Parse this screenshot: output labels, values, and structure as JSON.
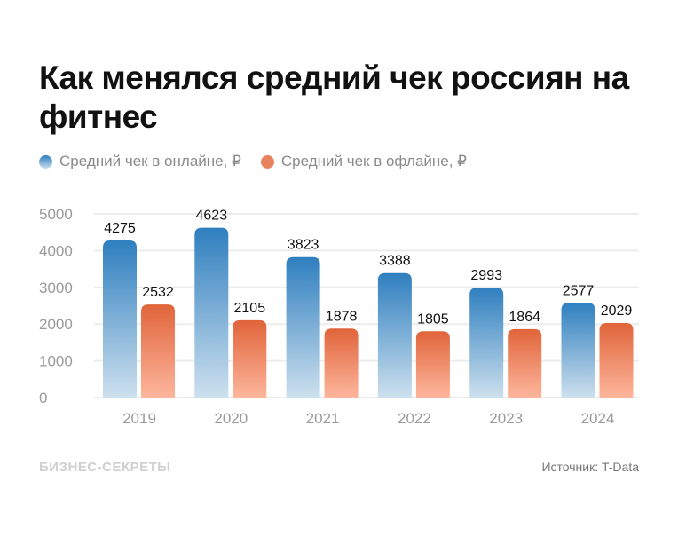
{
  "title": "Как менялся средний чек россиян на фитнес",
  "legend": [
    {
      "label": "Средний чек в онлайне, ₽",
      "color": "#3a85c2"
    },
    {
      "label": "Средний чек в офлайне, ₽",
      "color": "#e8825c"
    }
  ],
  "chart_data": {
    "type": "bar",
    "categories": [
      "2019",
      "2020",
      "2021",
      "2022",
      "2023",
      "2024"
    ],
    "series": [
      {
        "name": "Средний чек в онлайне, ₽",
        "values": [
          4275,
          4623,
          3823,
          3388,
          2993,
          2577
        ]
      },
      {
        "name": "Средний чек в офлайне, ₽",
        "values": [
          2532,
          2105,
          1878,
          1805,
          1864,
          2029
        ]
      }
    ],
    "ylim": [
      0,
      5000
    ],
    "yticks": [
      0,
      1000,
      2000,
      3000,
      4000,
      5000
    ],
    "grid": true,
    "legend_position": "top-left",
    "colors": {
      "online_top": "#2f7fbf",
      "online_bottom": "#cde0ee",
      "offline_top": "#e0643a",
      "offline_bottom": "#fdb69c"
    }
  },
  "footer": {
    "brand": "БИЗНЕС-СЕКРЕТЫ",
    "source": "Источник: T-Data"
  }
}
